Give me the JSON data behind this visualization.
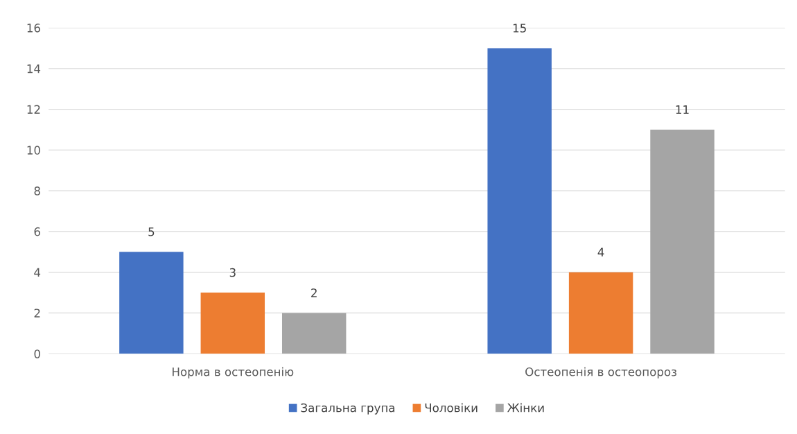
{
  "chart_data": {
    "type": "bar",
    "categories": [
      "Норма в остеопенію",
      "Остеопенія в остеопороз"
    ],
    "series": [
      {
        "name": "Загальна група",
        "color": "#4472c4",
        "values": [
          5,
          15
        ]
      },
      {
        "name": "Чоловіки",
        "color": "#ed7d31",
        "values": [
          3,
          4
        ]
      },
      {
        "name": "Жінки",
        "color": "#a5a5a5",
        "values": [
          2,
          11
        ]
      }
    ],
    "ylim": [
      0,
      16
    ],
    "yticks": [
      0,
      2,
      4,
      6,
      8,
      10,
      12,
      14,
      16
    ],
    "grid": "y",
    "legend": "bottom",
    "data_labels": true
  }
}
